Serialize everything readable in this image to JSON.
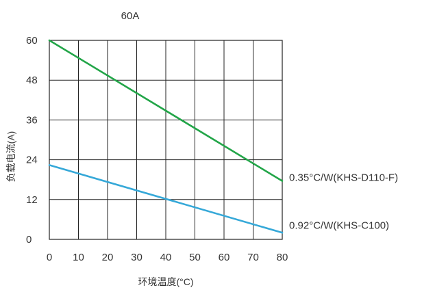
{
  "chart_data": {
    "type": "line",
    "title": "60A",
    "xlabel": "环境温度(°C)",
    "ylabel": "负载电流(A)",
    "x": [
      0,
      80
    ],
    "xlim": [
      0,
      80
    ],
    "ylim": [
      0,
      60
    ],
    "xticks": [
      0,
      10,
      20,
      30,
      40,
      50,
      60,
      70,
      80
    ],
    "yticks": [
      0,
      12,
      24,
      36,
      48,
      60
    ],
    "xtick_labels": [
      "0",
      "10",
      "20",
      "30",
      "40",
      "50",
      "60",
      "70",
      "80"
    ],
    "ytick_labels": [
      "0",
      "12",
      "24",
      "36",
      "48",
      "60"
    ],
    "grid": true,
    "series": [
      {
        "name": "0.35°C/W(KHS-D110-F)",
        "color": "#22a548",
        "values": [
          60,
          17.6
        ]
      },
      {
        "name": "0.92°C/W(KHS-C100)",
        "color": "#35a8d8",
        "values": [
          22.4,
          2
        ]
      }
    ]
  }
}
